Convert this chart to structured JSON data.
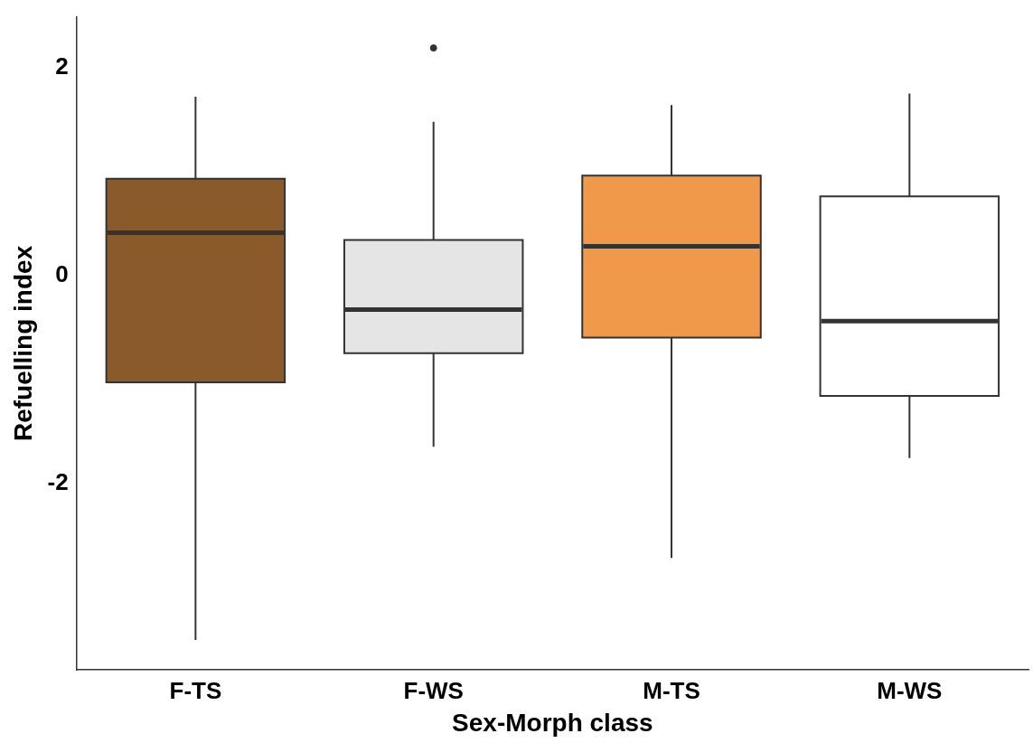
{
  "chart_data": {
    "type": "box",
    "xlabel": "Sex-Morph class",
    "ylabel": "Refuelling index",
    "categories": [
      "F-TS",
      "F-WS",
      "M-TS",
      "M-WS"
    ],
    "colors": [
      "#8b5a2b",
      "#e5e5e5",
      "#f0994a",
      "#ffffff"
    ],
    "boxes": [
      {
        "low": -3.51,
        "q1": -1.03,
        "median": 0.41,
        "q3": 0.93,
        "high": 1.72
      },
      {
        "low": -1.65,
        "q1": -0.75,
        "median": -0.33,
        "q3": 0.34,
        "high": 1.48,
        "outliers": [
          2.19
        ]
      },
      {
        "low": -2.72,
        "q1": -0.6,
        "median": 0.28,
        "q3": 0.96,
        "high": 1.64
      },
      {
        "low": -1.76,
        "q1": -1.16,
        "median": -0.44,
        "q3": 0.76,
        "high": 1.75
      }
    ],
    "ylim": [
      -3.8,
      2.49
    ],
    "yticks": [
      -2,
      0,
      2
    ]
  }
}
